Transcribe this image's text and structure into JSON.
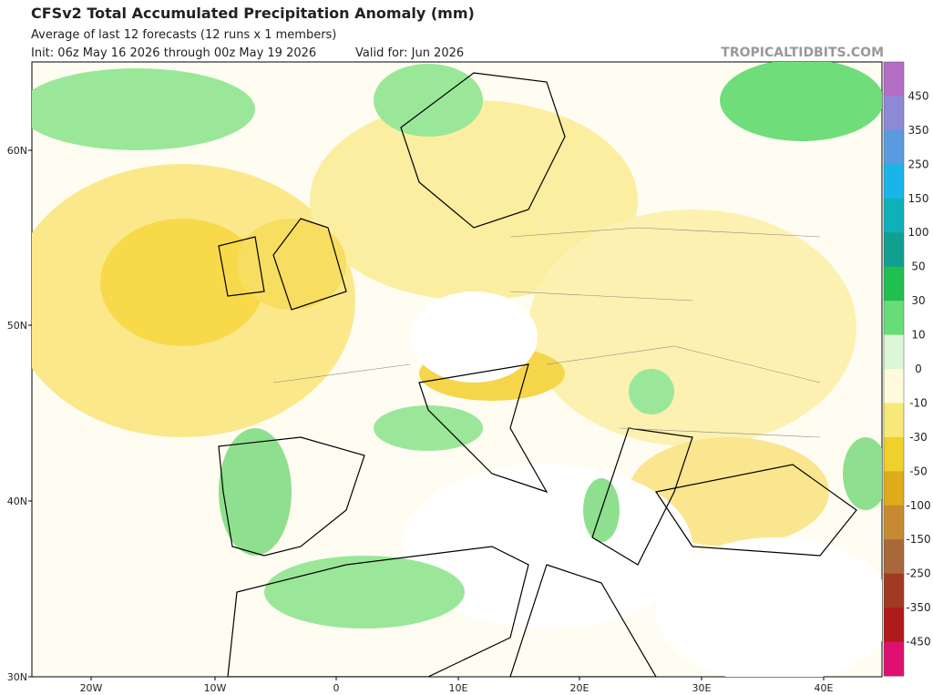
{
  "header": {
    "title": "CFSv2 Total Accumulated Precipitation Anomaly (mm)",
    "subtitle": "Average of last 12 forecasts (12 runs x 1 members)",
    "init": "Init: 06z May 16 2026 through 00z May 19 2026",
    "valid": "Valid for: Jun 2026",
    "watermark": "TROPICALTIDBITS.COM"
  },
  "map": {
    "lat_labels": [
      "60N",
      "50N",
      "40N",
      "30N"
    ],
    "lon_labels": [
      "20W",
      "10W",
      "0",
      "10E",
      "20E",
      "30E",
      "40E"
    ]
  },
  "colorbar": {
    "labels": [
      "450",
      "350",
      "250",
      "150",
      "100",
      "50",
      "30",
      "10",
      "0",
      "-10",
      "-30",
      "-50",
      "-100",
      "-150",
      "-250",
      "-350",
      "-450"
    ],
    "colors": [
      "#b46ec4",
      "#8c8ad6",
      "#5a9be0",
      "#1ab4e8",
      "#10b0b8",
      "#11a090",
      "#1fbf50",
      "#66dd77",
      "#dcf6d8",
      "#fffbdc",
      "#f7e87a",
      "#f0d02a",
      "#deac1a",
      "#c68a30",
      "#a8683a",
      "#a03a22",
      "#b01a1a",
      "#e01070"
    ]
  }
}
